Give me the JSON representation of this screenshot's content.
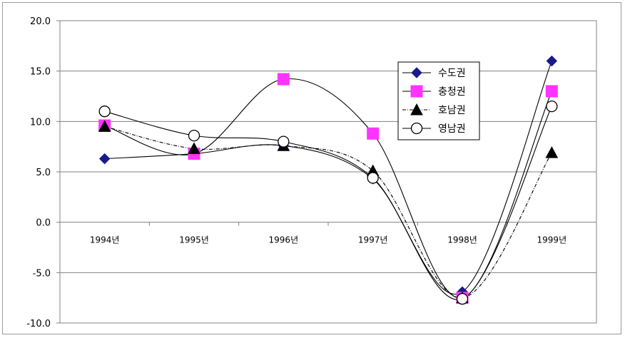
{
  "chart_data": {
    "type": "line",
    "categories": [
      "1994년",
      "1995년",
      "1996년",
      "1997년",
      "1998년",
      "1999년"
    ],
    "ylim": [
      -10.0,
      20.0
    ],
    "yticks": [
      "20.0",
      "15.0",
      "10.0",
      "5.0",
      "0.0",
      "-5.0",
      "-10.0"
    ],
    "grid": true,
    "legend_position": "top-right",
    "series": [
      {
        "name": "수도권",
        "values": [
          6.3,
          6.8,
          7.6,
          4.3,
          -6.9,
          16.0
        ],
        "color": "#1a1a8c",
        "marker": "diamond",
        "dash": ""
      },
      {
        "name": "충청권",
        "values": [
          9.6,
          6.8,
          14.2,
          8.8,
          -7.5,
          13.0
        ],
        "color": "#ff33ff",
        "marker": "square",
        "dash": ""
      },
      {
        "name": "호남권",
        "values": [
          9.5,
          7.3,
          7.6,
          5.1,
          -7.5,
          6.9
        ],
        "color": "#000000",
        "marker": "triangle",
        "dash": "5,2,1,2"
      },
      {
        "name": "영남권",
        "values": [
          11.0,
          8.6,
          8.0,
          4.4,
          -7.6,
          11.5
        ],
        "color": "#000000",
        "marker": "circle",
        "dash": ""
      }
    ]
  }
}
